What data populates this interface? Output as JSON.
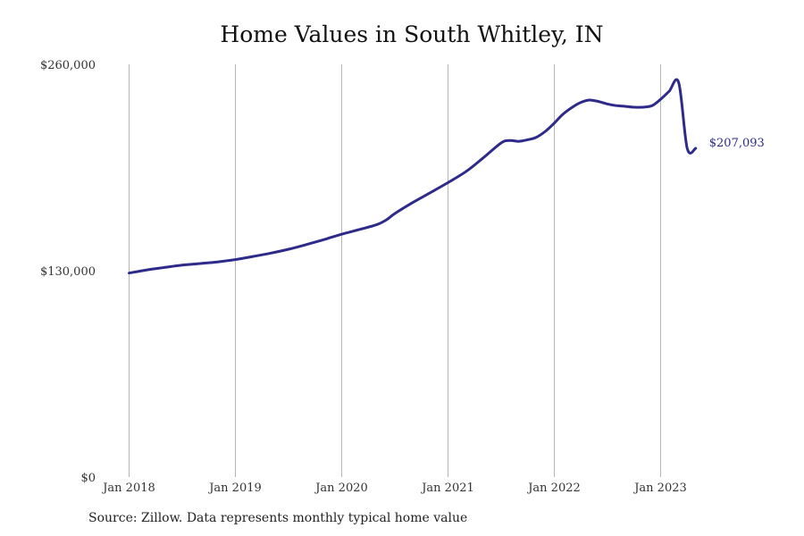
{
  "chart_data": {
    "type": "line",
    "title": "Home Values in South Whitley, IN",
    "source": "Source: Zillow. Data represents monthly typical home value",
    "ylim": [
      0,
      260000
    ],
    "y_ticks": [
      {
        "value": 0,
        "label": "$0"
      },
      {
        "value": 130000,
        "label": "$130,000"
      },
      {
        "value": 260000,
        "label": "$260,000"
      }
    ],
    "x_ticks": [
      {
        "value": 2018.0,
        "label": "Jan 2018"
      },
      {
        "value": 2019.0,
        "label": "Jan 2019"
      },
      {
        "value": 2020.0,
        "label": "Jan 2020"
      },
      {
        "value": 2021.0,
        "label": "Jan 2021"
      },
      {
        "value": 2022.0,
        "label": "Jan 2022"
      },
      {
        "value": 2023.0,
        "label": "Jan 2023"
      }
    ],
    "xlim": [
      2017.5,
      2024.5
    ],
    "grid": "vertical",
    "line_color": "#2e2a8a",
    "end_label": "$207,093",
    "series": [
      {
        "x": [
          2018.0,
          2018.17,
          2018.33,
          2018.5,
          2018.67,
          2018.83,
          2019.0,
          2019.17,
          2019.33,
          2019.5,
          2019.67,
          2019.83,
          2020.0,
          2020.17,
          2020.33,
          2020.42,
          2020.5,
          2020.67,
          2020.83,
          2021.0,
          2021.17,
          2021.33,
          2021.5,
          2021.58,
          2021.67,
          2021.75,
          2021.83,
          2021.92,
          2022.0,
          2022.08,
          2022.17,
          2022.25,
          2022.33,
          2022.42,
          2022.5,
          2022.58,
          2022.67,
          2022.75,
          2022.83,
          2022.92,
          2023.0,
          2023.08,
          2023.17,
          2023.25,
          2023.33
        ],
        "values": [
          128500,
          130500,
          132000,
          133500,
          134500,
          135500,
          137000,
          139000,
          141000,
          143500,
          146500,
          149500,
          153000,
          156000,
          159000,
          162000,
          166000,
          173000,
          179000,
          185500,
          192500,
          201000,
          210500,
          212000,
          211500,
          212500,
          214000,
          218000,
          223000,
          228500,
          233000,
          236000,
          237500,
          236500,
          235000,
          234000,
          233500,
          233000,
          233000,
          234000,
          238000,
          243000,
          248500,
          207093,
          207093
        ]
      }
    ]
  }
}
